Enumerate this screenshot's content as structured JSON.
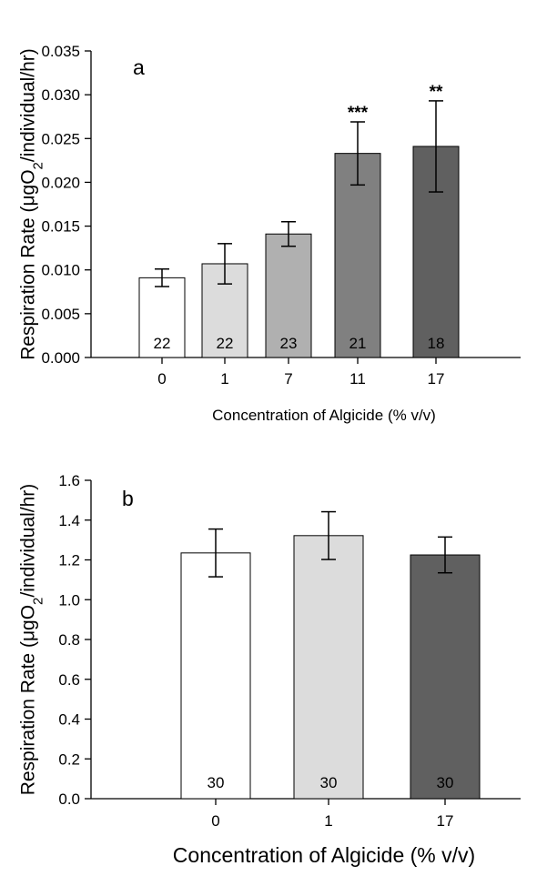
{
  "chart_data": [
    {
      "panel_label": "a",
      "type": "bar",
      "categories": [
        "0",
        "1",
        "7",
        "11",
        "17"
      ],
      "values": [
        0.0091,
        0.0107,
        0.0141,
        0.0233,
        0.0241
      ],
      "errors": [
        0.001,
        0.0023,
        0.0014,
        0.0036,
        0.0052
      ],
      "sample_sizes": [
        "22",
        "22",
        "23",
        "21",
        "18"
      ],
      "significance": [
        "",
        "",
        "",
        "***",
        "**"
      ],
      "bar_colors": [
        "#ffffff",
        "#dcdcdc",
        "#b0b0b0",
        "#808080",
        "#606060"
      ],
      "xlabel": "Concentration of Algicide (% v/v)",
      "ylabel": "Respiration Rate (μgO",
      "ylabel_sub": "2",
      "ylabel_tail": "/individual/hr)",
      "ylim": [
        0,
        0.035
      ],
      "yticks": [
        "0.000",
        "0.005",
        "0.010",
        "0.015",
        "0.020",
        "0.025",
        "0.030",
        "0.035"
      ],
      "grid": false
    },
    {
      "panel_label": "b",
      "type": "bar",
      "categories": [
        "0",
        "1",
        "17"
      ],
      "values": [
        1.235,
        1.322,
        1.225
      ],
      "errors": [
        0.12,
        0.12,
        0.09
      ],
      "sample_sizes": [
        "30",
        "30",
        "30"
      ],
      "significance": [
        "",
        "",
        ""
      ],
      "bar_colors": [
        "#ffffff",
        "#dcdcdc",
        "#606060"
      ],
      "xlabel": "Concentration of Algicide (% v/v)",
      "ylabel": "Respiration Rate (μgO",
      "ylabel_sub": "2",
      "ylabel_tail": "/individual/hr)",
      "ylim": [
        0,
        1.6
      ],
      "yticks": [
        "0.0",
        "0.2",
        "0.4",
        "0.6",
        "0.8",
        "1.0",
        "1.2",
        "1.4",
        "1.6"
      ],
      "grid": false
    }
  ]
}
